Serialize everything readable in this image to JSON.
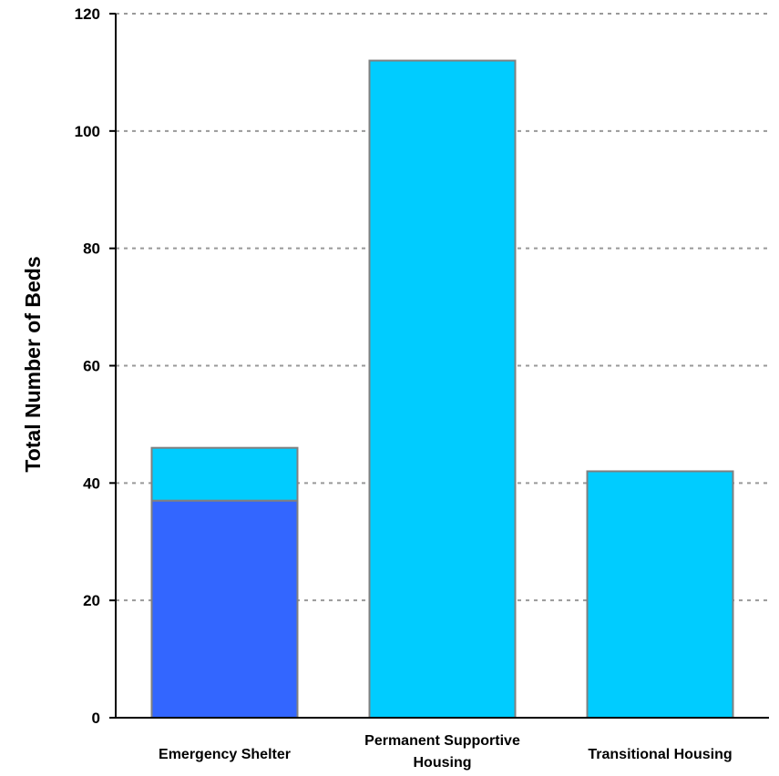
{
  "chart_data": {
    "type": "bar",
    "stacked": true,
    "title": "",
    "xlabel": "",
    "ylabel": "Total Number of Beds",
    "ylim": [
      0,
      120
    ],
    "yticks": [
      0,
      20,
      40,
      60,
      80,
      100,
      120
    ],
    "grid": true,
    "legend": "none",
    "categories": [
      [
        "Emergency Shelter"
      ],
      [
        "Permanent Supportive",
        "Housing"
      ],
      [
        "Transitional Housing"
      ]
    ],
    "series": [
      {
        "values": [
          37,
          0,
          0
        ],
        "color": "#3366FF"
      },
      {
        "values": [
          9,
          112,
          42
        ],
        "color": "#00CCFF"
      }
    ],
    "colors": {
      "grid": "#999999",
      "axis": "#000000",
      "bar_border": "#808080"
    }
  }
}
